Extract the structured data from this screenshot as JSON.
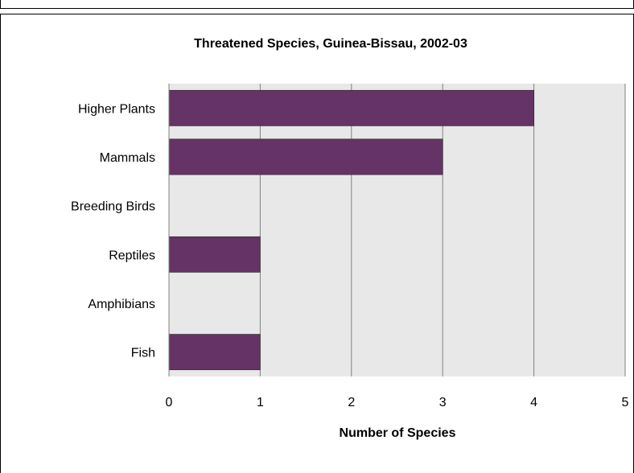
{
  "chart_data": {
    "type": "bar",
    "orientation": "horizontal",
    "title": "Threatened Species, Guinea-Bissau, 2002-03",
    "xlabel": "Number of Species",
    "ylabel": "",
    "categories": [
      "Higher Plants",
      "Mammals",
      "Breeding Birds",
      "Reptiles",
      "Amphibians",
      "Fish"
    ],
    "values": [
      4,
      3,
      0,
      1,
      0,
      1
    ],
    "xlim": [
      0,
      5
    ],
    "xticks": [
      "0",
      "1",
      "2",
      "3",
      "4",
      "5"
    ],
    "grid": true,
    "legend": "none",
    "colors": {
      "bar": "#663366",
      "plot_background": "#e8e8e8",
      "gridline": "#808080"
    }
  }
}
